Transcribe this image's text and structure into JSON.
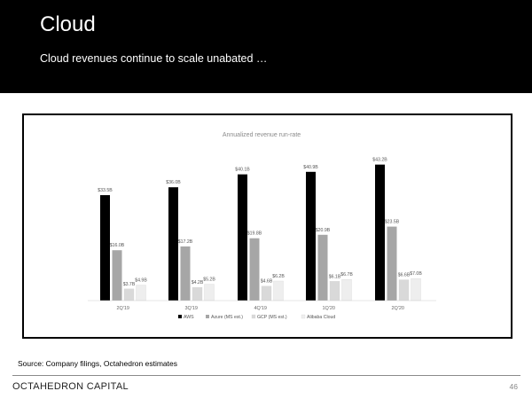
{
  "header": {
    "title": "Cloud",
    "subtitle": "Cloud revenues continue to scale unabated …"
  },
  "footer": {
    "source": "Source: Company filings, Octahedron estimates",
    "brand": "OCTAHEDRON CAPITAL",
    "page_number": "46"
  },
  "colors": {
    "header_bg": "#000000",
    "aws": "#000000",
    "azure": "#a6a6a6",
    "gcp": "#d9d9d9",
    "alibaba": "#eeeeee"
  },
  "chart_data": {
    "type": "bar",
    "title": "Annualized revenue run-rate",
    "categories": [
      "2Q'19",
      "3Q'19",
      "4Q'19",
      "1Q'20",
      "2Q'20"
    ],
    "ylim": [
      0,
      45
    ],
    "grid": false,
    "legend_position": "bottom",
    "series": [
      {
        "name": "AWS",
        "color": "#000000",
        "values": [
          33.5,
          36.0,
          40.1,
          40.9,
          43.2
        ],
        "labels": [
          "$33.5B",
          "$36.0B",
          "$40.1B",
          "$40.9B",
          "$43.2B"
        ]
      },
      {
        "name": "Azure (MS est.)",
        "color": "#a6a6a6",
        "values": [
          16.0,
          17.2,
          19.8,
          20.9,
          23.5
        ],
        "labels": [
          "$16.0B",
          "$17.2B",
          "$19.8B",
          "$20.9B",
          "$23.5B"
        ]
      },
      {
        "name": "GCP (MS est.)",
        "color": "#d9d9d9",
        "values": [
          3.7,
          4.2,
          4.6,
          6.1,
          6.6
        ],
        "labels": [
          "$3.7B",
          "$4.2B",
          "$4.6B",
          "$6.1B",
          "$6.6B"
        ]
      },
      {
        "name": "Alibaba Cloud",
        "color": "#eeeeee",
        "values": [
          4.9,
          5.2,
          6.2,
          6.7,
          7.0
        ],
        "labels": [
          "$4.9B",
          "$5.2B",
          "$6.2B",
          "$6.7B",
          "$7.0B"
        ]
      }
    ]
  }
}
